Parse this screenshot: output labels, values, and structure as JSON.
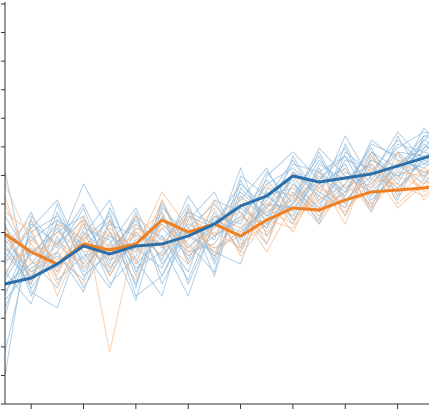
{
  "chart_data": {
    "type": "line",
    "title": "",
    "xlabel": "",
    "ylabel": "",
    "grid": false,
    "legend": "none",
    "x": [
      1,
      2,
      3,
      4,
      5,
      6,
      7,
      8,
      9,
      10,
      11,
      12,
      13,
      14,
      15,
      16,
      17,
      18
    ],
    "xlim": [
      1,
      17.2
    ],
    "ylim": [
      0,
      100
    ],
    "x_ticks": [
      2,
      4,
      6,
      8,
      10,
      12,
      14,
      16
    ],
    "y_ticks": [
      0,
      7.14,
      14.29,
      21.43,
      28.57,
      35.71,
      42.86,
      50,
      57.14,
      64.29,
      71.43,
      78.57,
      85.71,
      92.86,
      100
    ],
    "series": [
      {
        "role": "mean",
        "color": "#2c6fa8",
        "values": [
          30,
          31.5,
          35,
          39.5,
          37.5,
          39.5,
          40,
          42,
          45,
          49.5,
          52,
          57,
          55.5,
          56.5,
          57.5,
          59.5,
          61.5,
          63.5
        ]
      },
      {
        "role": "mean",
        "color": "#ef8021",
        "values": [
          42.5,
          38,
          35,
          40,
          38.5,
          40,
          46,
          43,
          45,
          42,
          46,
          49,
          48.5,
          51,
          53,
          53.5,
          54,
          55
        ]
      }
    ],
    "background_series": [
      {
        "color": "#8db8da",
        "values": [
          13,
          41,
          46,
          41,
          33,
          47,
          41,
          48,
          45,
          55,
          49,
          60,
          58,
          62,
          55,
          63,
          62,
          64
        ]
      },
      {
        "color": "#8db8da",
        "values": [
          26,
          34,
          38,
          28,
          46,
          27,
          32,
          44,
          39,
          42,
          52,
          54,
          48,
          55,
          63,
          59,
          67,
          68
        ]
      },
      {
        "color": "#8db8da",
        "values": [
          43,
          31,
          50,
          34,
          42,
          38,
          48,
          30,
          45,
          53,
          47,
          50,
          61,
          54,
          58,
          66,
          60,
          65
        ]
      },
      {
        "color": "#8db8da",
        "values": [
          7,
          47,
          39,
          55,
          43,
          34,
          38,
          52,
          42,
          46,
          55,
          59,
          53,
          49,
          63,
          56,
          69,
          62
        ]
      },
      {
        "color": "#8db8da",
        "values": [
          35,
          44,
          51,
          36,
          48,
          29,
          51,
          35,
          47,
          44,
          48,
          51,
          64,
          57,
          53,
          60,
          64,
          71
        ]
      },
      {
        "color": "#8db8da",
        "values": [
          58,
          28,
          24,
          43,
          37,
          47,
          32,
          46,
          53,
          39,
          57,
          63,
          56,
          64,
          51,
          58,
          66,
          63
        ]
      },
      {
        "color": "#8db8da",
        "values": [
          28,
          38,
          43,
          47,
          34,
          41,
          45,
          38,
          40,
          50,
          44,
          55,
          49,
          61,
          59,
          54,
          61,
          67
        ]
      },
      {
        "color": "#8db8da",
        "values": [
          41,
          33,
          37,
          31,
          49,
          36,
          27,
          49,
          36,
          57,
          52,
          47,
          58,
          53,
          65,
          62,
          58,
          59
        ]
      },
      {
        "color": "#8db8da",
        "values": [
          33,
          25,
          46,
          38,
          29,
          44,
          42,
          33,
          51,
          48,
          40,
          58,
          52,
          67,
          56,
          64,
          68,
          66
        ]
      },
      {
        "color": "#8db8da",
        "values": [
          47,
          36,
          29,
          44,
          41,
          26,
          49,
          42,
          38,
          35,
          54,
          52,
          62,
          50,
          61,
          57,
          65,
          60
        ]
      },
      {
        "color": "#8db8da",
        "values": [
          22,
          45,
          40,
          50,
          36,
          39,
          34,
          47,
          44,
          51,
          59,
          46,
          55,
          59,
          49,
          67,
          56,
          69
        ]
      },
      {
        "color": "#8db8da",
        "values": [
          38,
          30,
          48,
          35,
          45,
          42,
          40,
          27,
          46,
          43,
          49,
          56,
          45,
          63,
          58,
          53,
          62,
          57
        ]
      },
      {
        "color": "#8db8da",
        "values": [
          31,
          42,
          33,
          45,
          30,
          37,
          46,
          40,
          33,
          56,
          45,
          50,
          57,
          52,
          66,
          61,
          59,
          64
        ]
      },
      {
        "color": "#8db8da",
        "values": [
          45,
          27,
          42,
          29,
          40,
          49,
          35,
          44,
          50,
          41,
          51,
          61,
          50,
          58,
          54,
          65,
          63,
          61
        ]
      },
      {
        "color": "#8db8da",
        "values": [
          24,
          39,
          35,
          42,
          51,
          33,
          44,
          37,
          42,
          47,
          56,
          48,
          59,
          47,
          62,
          55,
          66,
          70
        ]
      },
      {
        "color": "#8db8da",
        "values": [
          36,
          48,
          31,
          37,
          39,
          45,
          39,
          50,
          35,
          52,
          46,
          58,
          54,
          60,
          48,
          63,
          57,
          62
        ]
      },
      {
        "color": "#8db8da",
        "values": [
          30,
          35,
          44,
          33,
          43,
          30,
          47,
          36,
          48,
          38,
          53,
          45,
          60,
          56,
          60,
          51,
          64,
          66
        ]
      },
      {
        "color": "#8db8da",
        "values": [
          40,
          29,
          38,
          49,
          32,
          43,
          37,
          45,
          41,
          59,
          42,
          53,
          46,
          65,
          52,
          60,
          55,
          63
        ]
      },
      {
        "color": "#8db8da",
        "values": [
          27,
          43,
          47,
          39,
          46,
          35,
          42,
          31,
          47,
          45,
          58,
          50,
          63,
          51,
          57,
          68,
          61,
          58
        ]
      },
      {
        "color": "#8db8da",
        "values": [
          39,
          32,
          40,
          46,
          35,
          48,
          30,
          43,
          37,
          49,
          44,
          62,
          51,
          55,
          64,
          52,
          67,
          65
        ]
      },
      {
        "color": "#8db8da",
        "values": [
          32,
          46,
          34,
          41,
          47,
          32,
          50,
          39,
          45,
          42,
          50,
          49,
          56,
          62,
          50,
          59,
          63,
          68
        ]
      },
      {
        "color": "#8db8da",
        "values": [
          44,
          37,
          45,
          32,
          38,
          46,
          36,
          48,
          32,
          54,
          47,
          57,
          48,
          53,
          61,
          57,
          60,
          60
        ]
      },
      {
        "color": "#f5b88a",
        "values": [
          55,
          40,
          32,
          46,
          39,
          42,
          48,
          37,
          43,
          39,
          50,
          47,
          52,
          48,
          56,
          55,
          52,
          57
        ]
      },
      {
        "color": "#f5b88a",
        "values": [
          45,
          30,
          41,
          35,
          44,
          38,
          44,
          46,
          38,
          47,
          42,
          52,
          45,
          55,
          50,
          58,
          57,
          53
        ]
      },
      {
        "color": "#f5b88a",
        "values": [
          38,
          44,
          27,
          43,
          32,
          45,
          39,
          41,
          49,
          37,
          46,
          44,
          54,
          50,
          59,
          49,
          55,
          59
        ]
      },
      {
        "color": "#f5b88a",
        "values": [
          50,
          35,
          38,
          30,
          46,
          35,
          51,
          38,
          44,
          52,
          40,
          55,
          47,
          57,
          48,
          61,
          53,
          56
        ]
      },
      {
        "color": "#f5b88a",
        "values": [
          33,
          41,
          36,
          47,
          13,
          43,
          37,
          49,
          37,
          44,
          51,
          43,
          56,
          45,
          62,
          52,
          58,
          54
        ]
      },
      {
        "color": "#f5b88a",
        "values": [
          42,
          33,
          43,
          38,
          40,
          31,
          46,
          42,
          51,
          40,
          45,
          58,
          49,
          53,
          55,
          63,
          51,
          58
        ]
      },
      {
        "color": "#f5b88a",
        "values": [
          48,
          43,
          30,
          42,
          36,
          47,
          41,
          35,
          45,
          48,
          38,
          50,
          58,
          47,
          60,
          54,
          59,
          55
        ]
      },
      {
        "color": "#f5b88a",
        "values": [
          36,
          38,
          40,
          34,
          43,
          39,
          53,
          44,
          39,
          43,
          55,
          46,
          51,
          59,
          49,
          57,
          54,
          60
        ]
      },
      {
        "color": "#f5b88a",
        "values": [
          52,
          31,
          45,
          41,
          34,
          44,
          40,
          47,
          42,
          50,
          43,
          53,
          47,
          52,
          63,
          50,
          56,
          52
        ]
      },
      {
        "color": "#f5b88a",
        "values": [
          40,
          46,
          33,
          45,
          42,
          36,
          45,
          39,
          47,
          38,
          49,
          45,
          55,
          49,
          54,
          60,
          58,
          57
        ]
      }
    ]
  }
}
